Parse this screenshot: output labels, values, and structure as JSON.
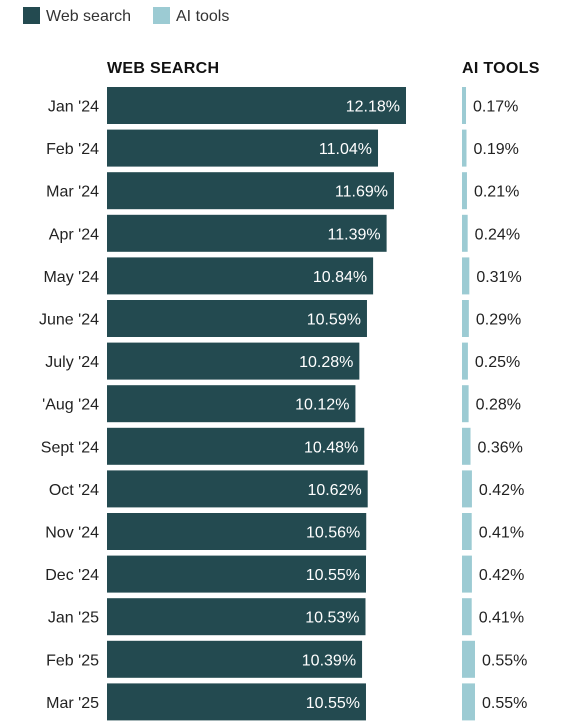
{
  "colors": {
    "web_search": "#234a50",
    "ai_tools": "#9ccbd3"
  },
  "chart_data": {
    "type": "bar",
    "orientation": "horizontal",
    "legend": {
      "placement": "top-left",
      "entries": [
        "Web search",
        "AI tools"
      ]
    },
    "column_headers": {
      "web_search": "WEB SEARCH",
      "ai_tools": "AI TOOLS"
    },
    "categories": [
      "Jan '24",
      "Feb '24",
      "Mar '24",
      "Apr '24",
      "May '24",
      "June '24",
      "July '24",
      "'Aug '24",
      "Sept '24",
      "Oct '24",
      "Nov '24",
      "Dec '24",
      "Jan '25",
      "Feb '25",
      "Mar '25"
    ],
    "series": [
      {
        "name": "Web search",
        "values": [
          12.18,
          11.04,
          11.69,
          11.39,
          10.84,
          10.59,
          10.28,
          10.12,
          10.48,
          10.62,
          10.56,
          10.55,
          10.53,
          10.39,
          10.55
        ],
        "labels": [
          "12.18%",
          "11.04%",
          "11.69%",
          "11.39%",
          "10.84%",
          "10.59%",
          "10.28%",
          "10.12%",
          "10.48%",
          "10.62%",
          "10.56%",
          "10.55%",
          "10.53%",
          "10.39%",
          "10.55%"
        ]
      },
      {
        "name": "AI tools",
        "values": [
          0.17,
          0.19,
          0.21,
          0.24,
          0.31,
          0.29,
          0.25,
          0.28,
          0.36,
          0.42,
          0.41,
          0.42,
          0.41,
          0.55,
          0.55
        ],
        "labels": [
          "0.17%",
          "0.19%",
          "0.21%",
          "0.24%",
          "0.31%",
          "0.29%",
          "0.25%",
          "0.28%",
          "0.36%",
          "0.42%",
          "0.41%",
          "0.42%",
          "0.41%",
          "0.55%",
          "0.55%"
        ]
      }
    ],
    "grid": false
  }
}
